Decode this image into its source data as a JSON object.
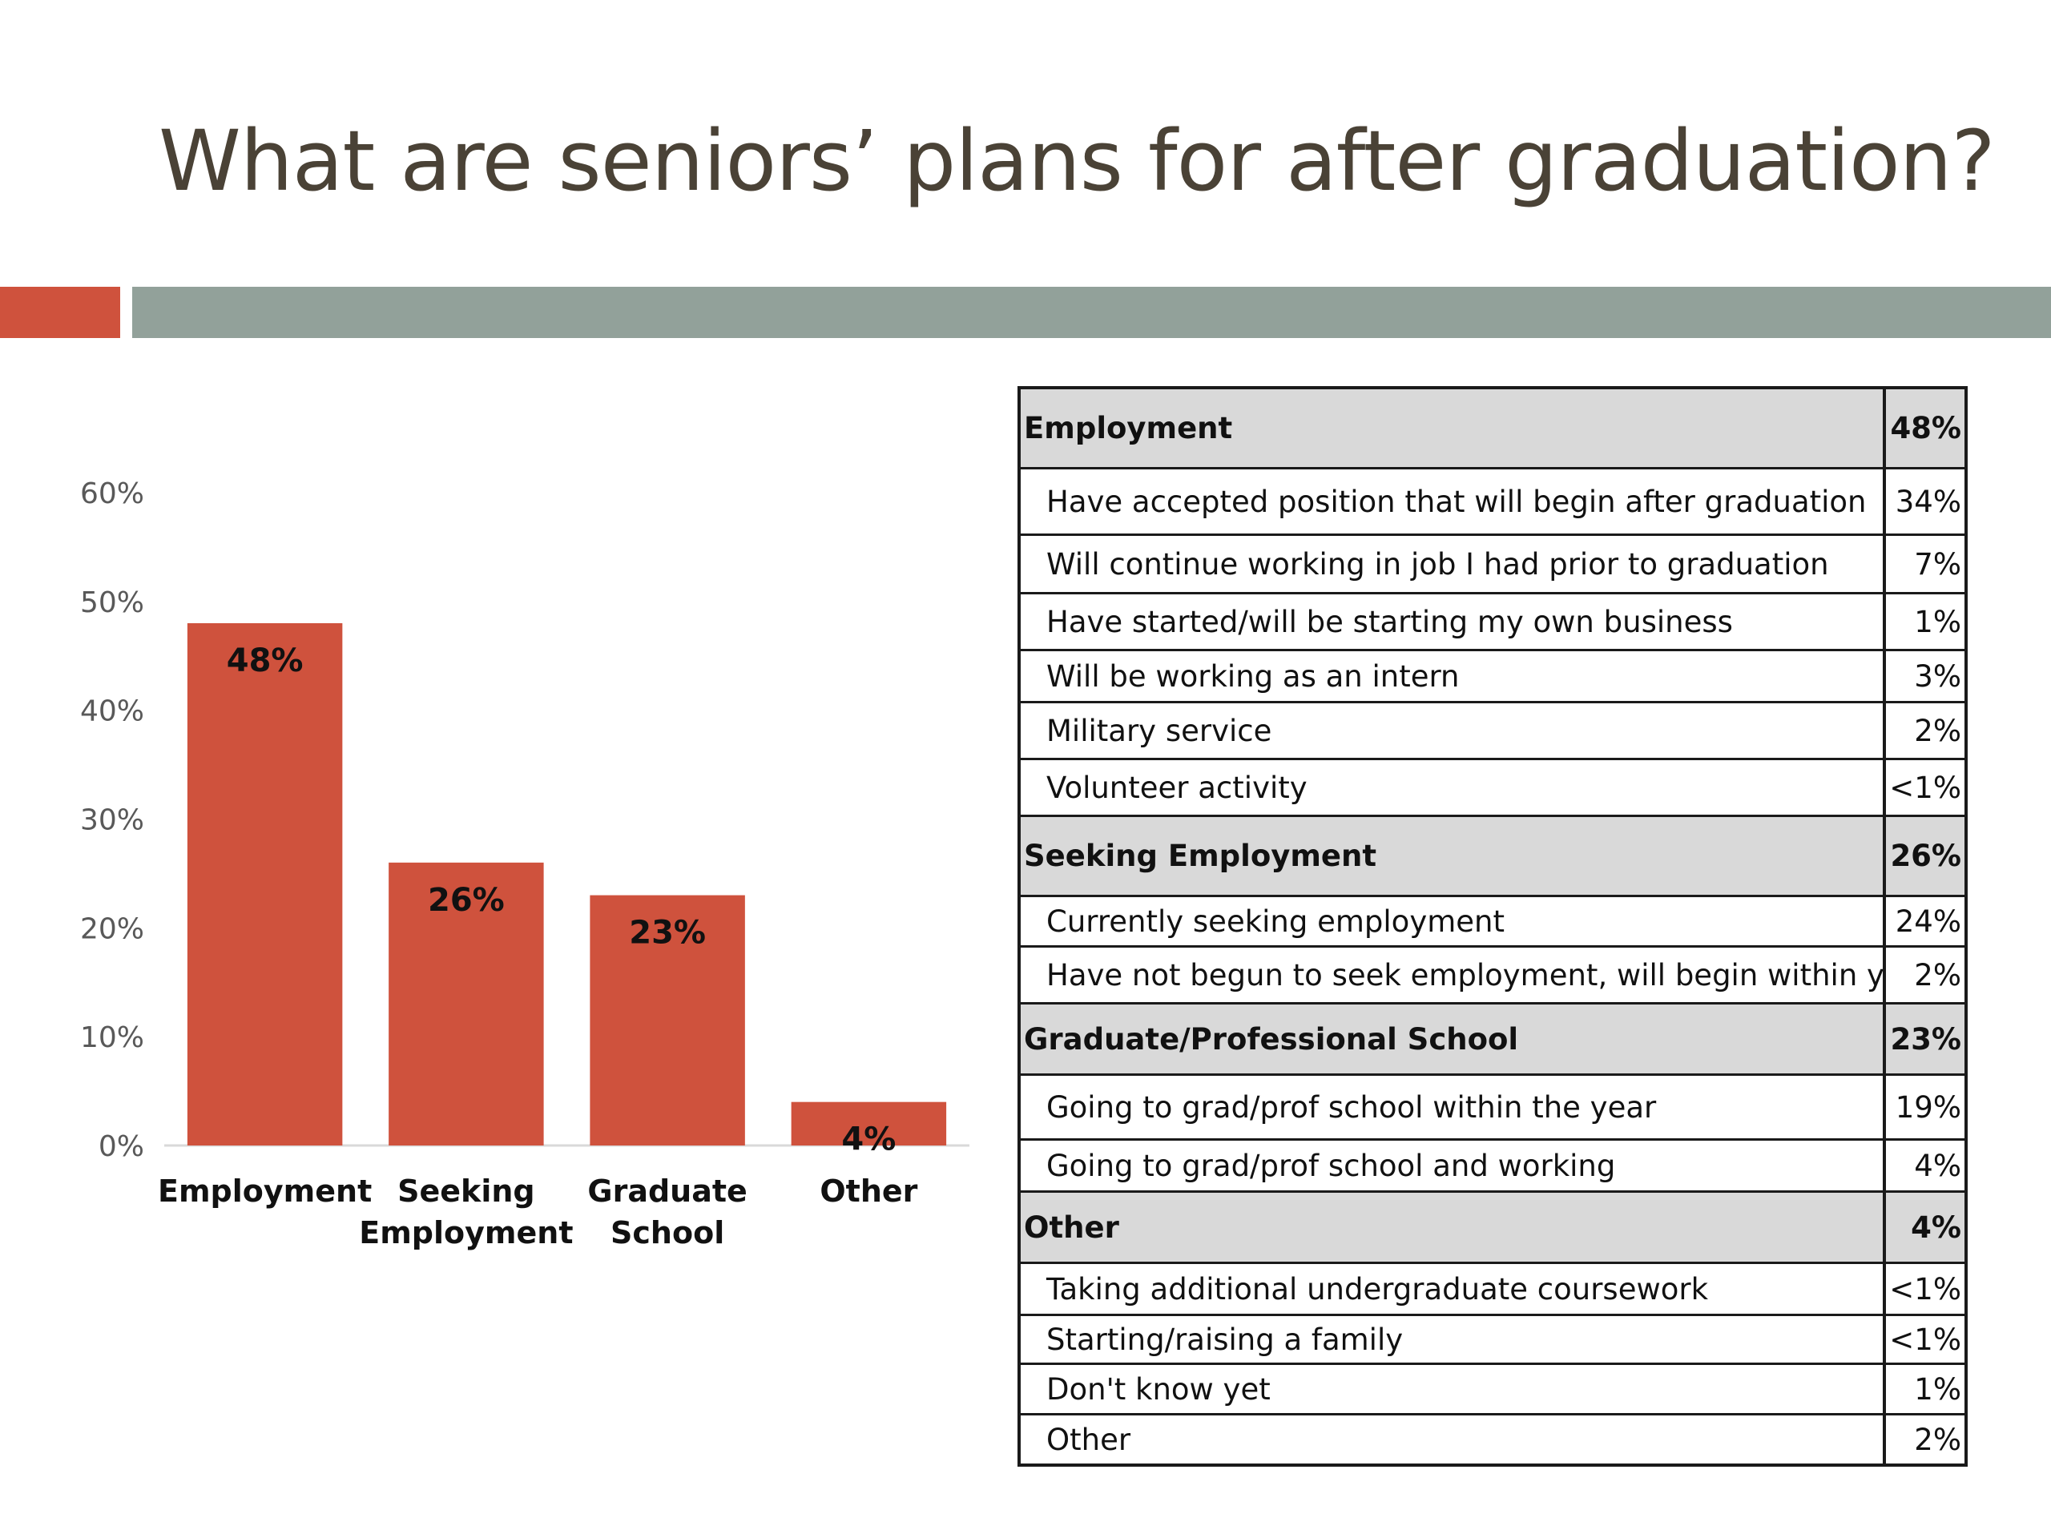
{
  "slide": {
    "title": "What are seniors’ plans for after graduation?"
  },
  "colors": {
    "accent": "#cf523d",
    "band": "#92a19a",
    "title_text": "#4a4236",
    "table_header_bg": "#d9d9d9"
  },
  "chart_data": {
    "type": "bar",
    "categories": [
      [
        "Employment"
      ],
      [
        "Seeking",
        "Employment"
      ],
      [
        "Graduate",
        "School"
      ],
      [
        "Other"
      ]
    ],
    "values": [
      48,
      26,
      23,
      4
    ],
    "value_labels": [
      "48%",
      "26%",
      "23%",
      "4%"
    ],
    "y_ticks": [
      "0%",
      "10%",
      "20%",
      "30%",
      "40%",
      "50%",
      "60%"
    ],
    "ylim": [
      0,
      60
    ],
    "bar_color": "#cf523d",
    "grid": false,
    "legend": "none"
  },
  "table": {
    "groups": [
      {
        "label": "Employment",
        "pct": "48%",
        "items": [
          {
            "label": "Have accepted position that will begin after graduation",
            "pct": "34%"
          },
          {
            "label": "Will continue working in job I had prior to graduation",
            "pct": "7%"
          },
          {
            "label": "Have started/will be starting my own business",
            "pct": "1%"
          },
          {
            "label": "Will be working as an intern",
            "pct": "3%"
          },
          {
            "label": "Military service",
            "pct": "2%"
          },
          {
            "label": "Volunteer activity",
            "pct": "<1%"
          }
        ]
      },
      {
        "label": "Seeking Employment",
        "pct": "26%",
        "items": [
          {
            "label": "Currently seeking employment",
            "pct": "24%"
          },
          {
            "label": "Have not begun to seek employment, will begin within year",
            "pct": "2%"
          }
        ]
      },
      {
        "label": "Graduate/Professional School",
        "pct": "23%",
        "items": [
          {
            "label": "Going to grad/prof school within the year",
            "pct": "19%"
          },
          {
            "label": "Going to grad/prof school and working",
            "pct": "4%"
          }
        ]
      },
      {
        "label": "Other",
        "pct": "4%",
        "items": [
          {
            "label": "Taking additional undergraduate coursework",
            "pct": "<1%"
          },
          {
            "label": "Starting/raising a family",
            "pct": "<1%"
          },
          {
            "label": "Don't know yet",
            "pct": "1%"
          },
          {
            "label": "Other",
            "pct": "2%"
          }
        ]
      }
    ]
  }
}
